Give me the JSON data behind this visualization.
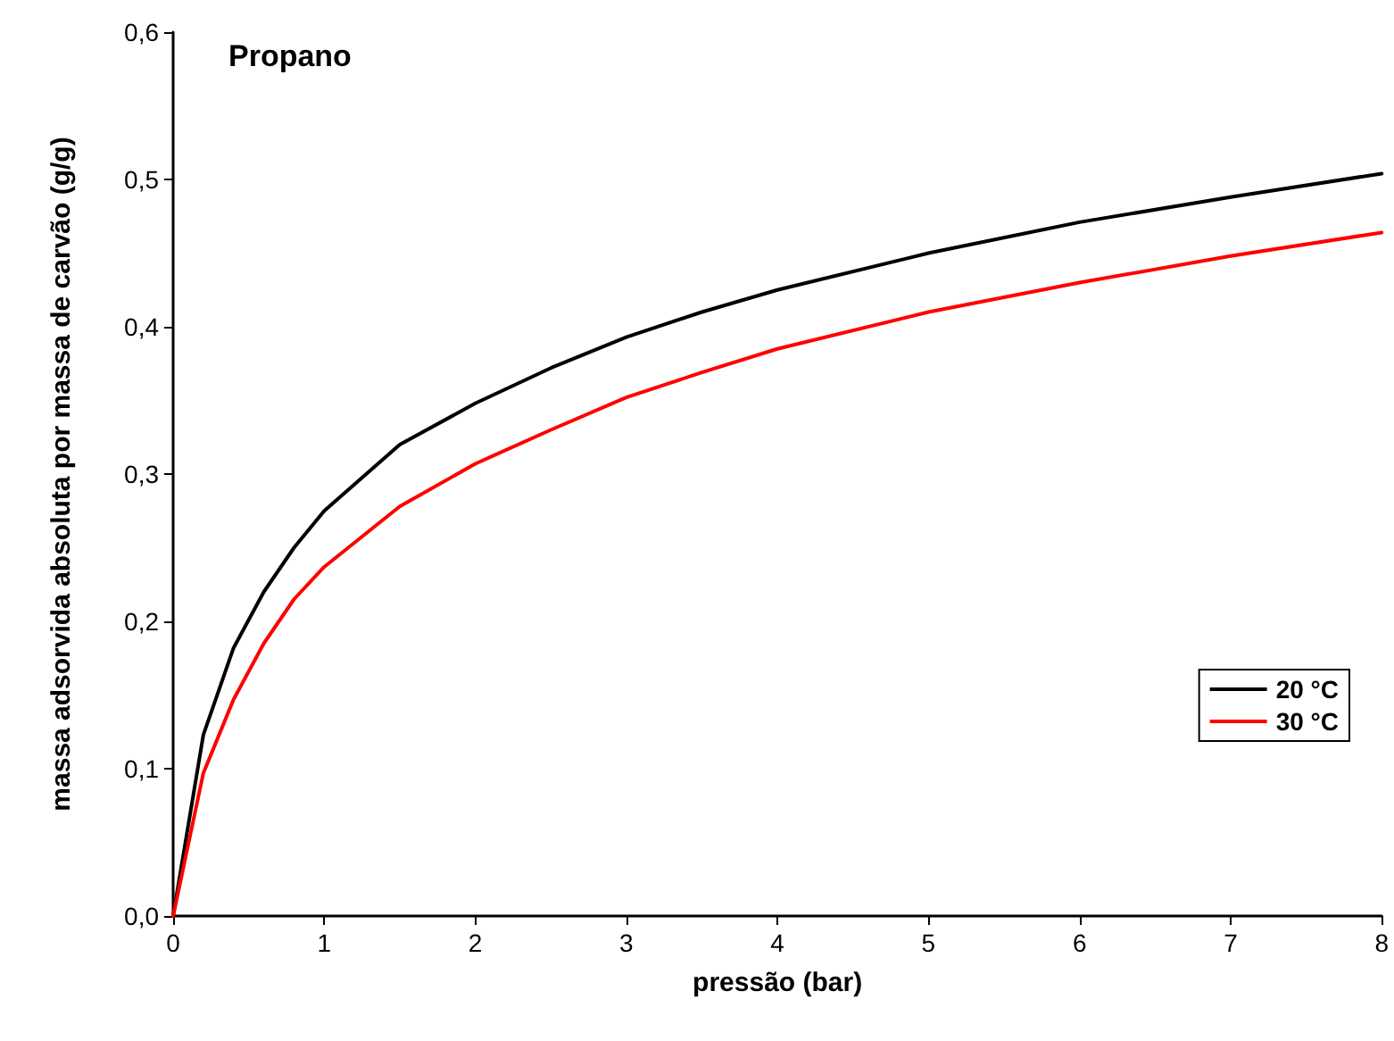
{
  "chart_data": {
    "type": "line",
    "title": "Propano",
    "xlabel": "pressão (bar)",
    "ylabel": "massa adsorvida absoluta por massa de carvão (g/g)",
    "xlim": [
      0,
      8
    ],
    "xticks": [
      0,
      1,
      2,
      3,
      4,
      5,
      6,
      7,
      8
    ],
    "ylim": [
      0,
      0.6
    ],
    "yticks": [
      {
        "value": 0,
        "label": "0,0"
      },
      {
        "value": 0.1,
        "label": "0,1"
      },
      {
        "value": 0.2,
        "label": "0,2"
      },
      {
        "value": 0.3,
        "label": "0,3"
      },
      {
        "value": 0.4,
        "label": "0,4"
      },
      {
        "value": 0.5,
        "label": "0,5"
      },
      {
        "value": 0.6,
        "label": "0,6"
      }
    ],
    "grid": false,
    "legend": "right",
    "marker": "none",
    "line_style": "solid",
    "x": [
      0,
      0.2,
      0.4,
      0.6,
      0.8,
      1,
      1.5,
      2,
      2.5,
      3,
      3.5,
      4,
      5,
      6,
      7,
      8
    ],
    "series": [
      {
        "name": "20 °C",
        "color": "#000000",
        "values": [
          0,
          0.123,
          0.182,
          0.22,
          0.25,
          0.275,
          0.32,
          0.348,
          0.372,
          0.393,
          0.41,
          0.425,
          0.45,
          0.471,
          0.488,
          0.504
        ]
      },
      {
        "name": "30 °C",
        "color": "#ff0000",
        "values": [
          0,
          0.097,
          0.147,
          0.185,
          0.215,
          0.237,
          0.278,
          0.307,
          0.33,
          0.352,
          0.369,
          0.385,
          0.41,
          0.43,
          0.448,
          0.464
        ]
      }
    ]
  }
}
